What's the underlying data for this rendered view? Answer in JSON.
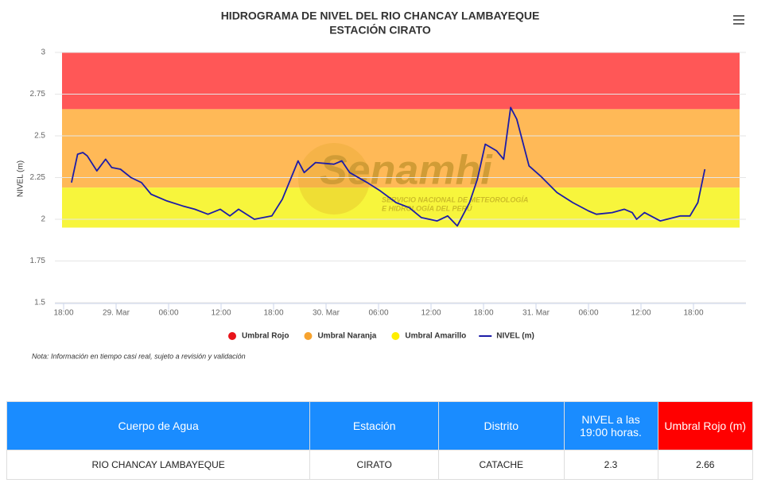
{
  "chart_data": {
    "type": "line",
    "title": "HIDROGRAMA DE NIVEL DEL RIO CHANCAY LAMBAYEQUE",
    "subtitle": "ESTACIÓN CIRATO",
    "y_label": "NIVEL (m)",
    "watermark": [
      "Senamhi",
      "SERVICIO NACIONAL DE METEOROLOGÍA",
      "E HIDROLOGÍA DEL PERÚ"
    ],
    "ylim": [
      1.5,
      3
    ],
    "yticks": [
      1.5,
      1.75,
      2,
      2.25,
      2.5,
      2.75,
      3
    ],
    "xlim": [
      -1,
      78
    ],
    "xticks": [
      {
        "value": 0,
        "label": "18:00"
      },
      {
        "value": 6,
        "label": "29. Mar"
      },
      {
        "value": 12,
        "label": "06:00"
      },
      {
        "value": 18,
        "label": "12:00"
      },
      {
        "value": 24,
        "label": "18:00"
      },
      {
        "value": 30,
        "label": "30. Mar"
      },
      {
        "value": 36,
        "label": "06:00"
      },
      {
        "value": 42,
        "label": "12:00"
      },
      {
        "value": 48,
        "label": "18:00"
      },
      {
        "value": 54,
        "label": "31. Mar"
      },
      {
        "value": 60,
        "label": "06:00"
      },
      {
        "value": 66,
        "label": "12:00"
      },
      {
        "value": 72,
        "label": "18:00"
      }
    ],
    "grid": true,
    "bands": [
      {
        "name": "Umbral Rojo",
        "color": "#e8141b",
        "fill": "#ff5757",
        "from": 2.66,
        "to": 3
      },
      {
        "name": "Umbral Naranja",
        "color": "#f7a32e",
        "fill": "#ffb957",
        "from": 2.19,
        "to": 2.66
      },
      {
        "name": "Umbral Amarillo",
        "color": "#ffee00",
        "fill": "#f7f53c",
        "from": 1.95,
        "to": 2.19
      }
    ],
    "x": [
      0.9,
      1.6,
      2.2,
      2.7,
      3.8,
      4.8,
      5.5,
      6.5,
      7.7,
      8.9,
      10,
      11.8,
      13.6,
      15,
      16.5,
      17.9,
      19,
      20,
      21.8,
      23.8,
      25,
      26.8,
      27.5,
      28.8,
      30.9,
      31.8,
      32.7,
      34.7,
      36.2,
      38,
      39.5,
      40.9,
      42.7,
      43.9,
      45,
      46.4,
      47.3,
      48.2,
      49.5,
      50.3,
      51.1,
      51.8,
      53.2,
      54.5,
      56.4,
      58.2,
      60,
      60.9,
      62.7,
      64.1,
      65,
      65.5,
      66.4,
      68.2,
      70.5,
      71.6,
      72.5,
      73.3
    ],
    "series": [
      {
        "name": "NIVEL (m)",
        "color": "#1c1ca8",
        "values": [
          2.22,
          2.39,
          2.4,
          2.38,
          2.29,
          2.36,
          2.31,
          2.3,
          2.25,
          2.22,
          2.15,
          2.11,
          2.08,
          2.06,
          2.03,
          2.06,
          2.02,
          2.06,
          2.0,
          2.02,
          2.12,
          2.35,
          2.28,
          2.34,
          2.33,
          2.35,
          2.28,
          2.22,
          2.17,
          2.1,
          2.07,
          2.01,
          1.99,
          2.02,
          1.96,
          2.1,
          2.24,
          2.45,
          2.41,
          2.36,
          2.67,
          2.6,
          2.32,
          2.26,
          2.16,
          2.1,
          2.05,
          2.03,
          2.04,
          2.06,
          2.04,
          2.0,
          2.04,
          1.99,
          2.02,
          2.02,
          2.1,
          2.3
        ]
      }
    ]
  },
  "note": "Nota: Información en tiempo casi real, sujeto a revisión y validación",
  "table": {
    "header": [
      "Cuerpo de Agua",
      "Estación",
      "Distrito",
      "NIVEL a las 19:00 horas.",
      "Umbral Rojo (m)"
    ],
    "rows": [
      [
        "RIO CHANCAY LAMBAYEQUE",
        "CIRATO",
        "CATACHE",
        "2.3",
        "2.66"
      ]
    ]
  }
}
